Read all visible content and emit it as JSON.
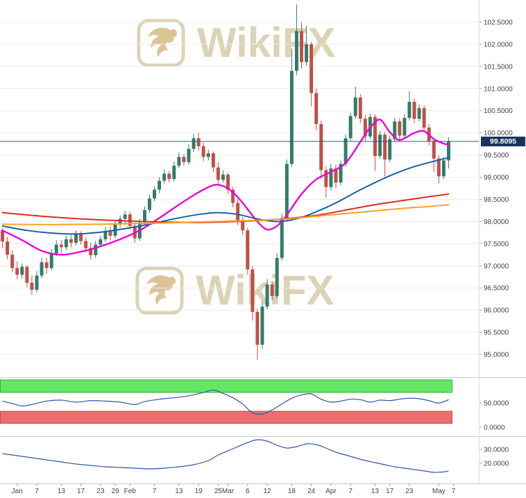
{
  "watermark": {
    "text": "WikiFX",
    "color": "#d8cfae",
    "logo_accent": "#d9be8c"
  },
  "colors": {
    "up": "#2f7d68",
    "down": "#c14e48",
    "grid": "#ececec",
    "axis_text": "#444444",
    "tick": "#999999",
    "separator": "#c9c9c9",
    "axis_line": "#dddddd",
    "price_line": "#35536e",
    "badge_bg": "#16365c",
    "badge_text": "#ffffff"
  },
  "chart_data": {
    "type": "candlestick",
    "title": "",
    "last_price": 99.8095,
    "last_price_label": "99.8095",
    "y_axis": {
      "min": 94.5,
      "max": 103.0,
      "tick_start": 95.0,
      "tick_step": 0.5,
      "tick_end": 102.5,
      "decimals": 4,
      "grid": true
    },
    "x_ticks": [
      {
        "i": 3,
        "label": "Jan"
      },
      {
        "i": 7,
        "label": "7"
      },
      {
        "i": 12,
        "label": "13"
      },
      {
        "i": 16,
        "label": "17"
      },
      {
        "i": 20,
        "label": "23"
      },
      {
        "i": 23,
        "label": "29"
      },
      {
        "i": 26,
        "label": "Feb"
      },
      {
        "i": 31,
        "label": "7"
      },
      {
        "i": 36,
        "label": "13"
      },
      {
        "i": 40,
        "label": "19"
      },
      {
        "i": 44,
        "label": "25"
      },
      {
        "i": 46,
        "label": "Mar"
      },
      {
        "i": 50,
        "label": "6"
      },
      {
        "i": 54,
        "label": "12"
      },
      {
        "i": 59,
        "label": "18"
      },
      {
        "i": 63,
        "label": "24"
      },
      {
        "i": 67,
        "label": "Apr"
      },
      {
        "i": 71,
        "label": "7"
      },
      {
        "i": 76,
        "label": "13"
      },
      {
        "i": 79,
        "label": "17"
      },
      {
        "i": 83,
        "label": "23"
      },
      {
        "i": 89,
        "label": "May"
      },
      {
        "i": 92,
        "label": "7"
      }
    ],
    "candles": [
      [
        97.8,
        97.85,
        97.4,
        97.55
      ],
      [
        97.55,
        97.65,
        97.15,
        97.25
      ],
      [
        97.25,
        97.35,
        96.85,
        96.95
      ],
      [
        96.95,
        97.1,
        96.7,
        96.8
      ],
      [
        96.8,
        97.05,
        96.72,
        96.98
      ],
      [
        96.98,
        97.02,
        96.52,
        96.62
      ],
      [
        96.62,
        96.78,
        96.34,
        96.46
      ],
      [
        96.46,
        96.88,
        96.4,
        96.78
      ],
      [
        96.78,
        97.18,
        96.72,
        97.08
      ],
      [
        97.08,
        97.18,
        96.82,
        96.95
      ],
      [
        96.95,
        97.38,
        96.9,
        97.28
      ],
      [
        97.28,
        97.58,
        97.22,
        97.48
      ],
      [
        97.48,
        97.58,
        97.28,
        97.42
      ],
      [
        97.42,
        97.68,
        97.36,
        97.6
      ],
      [
        97.6,
        97.7,
        97.42,
        97.52
      ],
      [
        97.52,
        97.8,
        97.46,
        97.72
      ],
      [
        97.72,
        97.78,
        97.48,
        97.56
      ],
      [
        97.56,
        97.64,
        97.3,
        97.4
      ],
      [
        97.4,
        97.52,
        97.14,
        97.24
      ],
      [
        97.24,
        97.56,
        97.18,
        97.48
      ],
      [
        97.48,
        97.68,
        97.42,
        97.6
      ],
      [
        97.6,
        97.88,
        97.54,
        97.78
      ],
      [
        97.78,
        97.88,
        97.58,
        97.68
      ],
      [
        97.68,
        98.02,
        97.62,
        97.94
      ],
      [
        97.94,
        98.14,
        97.86,
        98.06
      ],
      [
        98.06,
        98.24,
        97.92,
        98.16
      ],
      [
        98.16,
        98.22,
        97.82,
        97.9
      ],
      [
        97.9,
        97.98,
        97.52,
        97.62
      ],
      [
        97.62,
        98.06,
        97.56,
        97.98
      ],
      [
        97.98,
        98.34,
        97.92,
        98.26
      ],
      [
        98.26,
        98.6,
        98.2,
        98.52
      ],
      [
        98.52,
        98.8,
        98.46,
        98.72
      ],
      [
        98.72,
        99.0,
        98.64,
        98.92
      ],
      [
        98.92,
        99.18,
        98.86,
        99.08
      ],
      [
        99.08,
        99.14,
        98.88,
        98.96
      ],
      [
        98.96,
        99.36,
        98.9,
        99.26
      ],
      [
        99.26,
        99.56,
        99.2,
        99.46
      ],
      [
        99.46,
        99.52,
        99.26,
        99.34
      ],
      [
        99.34,
        99.74,
        99.28,
        99.64
      ],
      [
        99.64,
        99.98,
        99.58,
        99.88
      ],
      [
        99.88,
        100.0,
        99.6,
        99.7
      ],
      [
        99.7,
        99.78,
        99.36,
        99.46
      ],
      [
        99.46,
        99.62,
        99.38,
        99.54
      ],
      [
        99.54,
        99.58,
        99.12,
        99.22
      ],
      [
        99.22,
        99.34,
        98.84,
        98.94
      ],
      [
        98.94,
        99.16,
        98.88,
        99.06
      ],
      [
        99.06,
        99.1,
        98.62,
        98.72
      ],
      [
        98.72,
        98.78,
        98.32,
        98.42
      ],
      [
        98.42,
        98.5,
        97.92,
        98.02
      ],
      [
        98.02,
        98.1,
        97.7,
        97.8
      ],
      [
        97.8,
        97.86,
        96.8,
        96.92
      ],
      [
        96.92,
        97.0,
        95.76,
        95.96
      ],
      [
        95.96,
        96.04,
        94.88,
        95.22
      ],
      [
        95.22,
        96.18,
        95.12,
        96.08
      ],
      [
        96.08,
        96.7,
        96.02,
        96.58
      ],
      [
        96.58,
        96.66,
        96.22,
        96.32
      ],
      [
        96.32,
        97.28,
        96.26,
        97.18
      ],
      [
        97.18,
        98.18,
        97.12,
        98.08
      ],
      [
        98.08,
        99.4,
        98.02,
        99.3
      ],
      [
        99.3,
        101.9,
        99.24,
        101.4
      ],
      [
        101.4,
        102.9,
        101.3,
        102.3
      ],
      [
        102.3,
        102.5,
        101.46,
        101.6
      ],
      [
        101.6,
        102.42,
        101.52,
        102.0
      ],
      [
        102.0,
        102.06,
        100.6,
        100.9
      ],
      [
        100.9,
        101.0,
        100.06,
        100.2
      ],
      [
        100.2,
        100.28,
        98.96,
        99.16
      ],
      [
        99.16,
        99.24,
        98.54,
        98.78
      ],
      [
        98.78,
        99.3,
        98.7,
        99.2
      ],
      [
        99.2,
        99.28,
        98.76,
        98.88
      ],
      [
        98.88,
        99.38,
        98.82,
        99.3
      ],
      [
        99.3,
        99.96,
        99.24,
        99.88
      ],
      [
        99.88,
        100.46,
        99.82,
        100.38
      ],
      [
        100.38,
        101.04,
        100.32,
        100.8
      ],
      [
        100.8,
        100.88,
        100.22,
        100.32
      ],
      [
        100.32,
        100.4,
        99.82,
        99.92
      ],
      [
        99.92,
        100.44,
        99.86,
        100.36
      ],
      [
        100.36,
        100.42,
        99.14,
        99.48
      ],
      [
        99.48,
        100.04,
        99.42,
        99.96
      ],
      [
        99.96,
        100.02,
        99.02,
        99.4
      ],
      [
        99.4,
        99.94,
        99.34,
        99.86
      ],
      [
        99.86,
        100.34,
        99.8,
        100.26
      ],
      [
        100.26,
        100.32,
        99.84,
        99.94
      ],
      [
        99.94,
        100.42,
        99.88,
        100.34
      ],
      [
        100.34,
        100.94,
        100.28,
        100.7
      ],
      [
        100.7,
        100.78,
        100.22,
        100.32
      ],
      [
        100.32,
        100.64,
        100.26,
        100.56
      ],
      [
        100.56,
        100.62,
        100.02,
        100.12
      ],
      [
        100.12,
        100.2,
        99.72,
        99.82
      ],
      [
        99.82,
        99.88,
        99.12,
        99.42
      ],
      [
        99.42,
        99.5,
        98.86,
        99.02
      ],
      [
        99.02,
        99.46,
        98.96,
        99.38
      ],
      [
        99.38,
        99.9,
        99.2,
        99.81
      ]
    ],
    "overlays": [
      {
        "name": "ma-fast-magenta",
        "color": "#f000d8",
        "width": 2.4,
        "points": [
          [
            0,
            97.8
          ],
          [
            4,
            97.58
          ],
          [
            8,
            97.34
          ],
          [
            12,
            97.25
          ],
          [
            16,
            97.32
          ],
          [
            20,
            97.44
          ],
          [
            24,
            97.6
          ],
          [
            28,
            97.8
          ],
          [
            32,
            98.08
          ],
          [
            36,
            98.38
          ],
          [
            40,
            98.66
          ],
          [
            43,
            98.82
          ],
          [
            45,
            98.8
          ],
          [
            47,
            98.66
          ],
          [
            49,
            98.42
          ],
          [
            52,
            98.0
          ],
          [
            54,
            97.82
          ],
          [
            56,
            97.9
          ],
          [
            58,
            98.15
          ],
          [
            61,
            98.62
          ],
          [
            64,
            98.95
          ],
          [
            67,
            99.12
          ],
          [
            70,
            99.32
          ],
          [
            73,
            99.8
          ],
          [
            75,
            100.12
          ],
          [
            77,
            100.3
          ],
          [
            79,
            100.02
          ],
          [
            81,
            99.84
          ],
          [
            84,
            100.0
          ],
          [
            86,
            100.04
          ],
          [
            88,
            99.86
          ],
          [
            90,
            99.76
          ],
          [
            91,
            99.74
          ]
        ]
      },
      {
        "name": "ma-mid-blue",
        "color": "#1b5fa6",
        "width": 2,
        "points": [
          [
            0,
            97.9
          ],
          [
            5,
            97.8
          ],
          [
            10,
            97.74
          ],
          [
            15,
            97.72
          ],
          [
            20,
            97.76
          ],
          [
            25,
            97.84
          ],
          [
            30,
            97.94
          ],
          [
            35,
            98.06
          ],
          [
            40,
            98.16
          ],
          [
            44,
            98.2
          ],
          [
            48,
            98.16
          ],
          [
            52,
            98.06
          ],
          [
            56,
            98.0
          ],
          [
            60,
            98.06
          ],
          [
            64,
            98.22
          ],
          [
            68,
            98.42
          ],
          [
            72,
            98.66
          ],
          [
            76,
            98.88
          ],
          [
            80,
            99.08
          ],
          [
            84,
            99.24
          ],
          [
            88,
            99.36
          ],
          [
            91,
            99.44
          ]
        ]
      },
      {
        "name": "ma-slow-red",
        "color": "#e02b20",
        "width": 2,
        "points": [
          [
            0,
            98.2
          ],
          [
            8,
            98.12
          ],
          [
            16,
            98.06
          ],
          [
            24,
            98.02
          ],
          [
            32,
            97.99
          ],
          [
            40,
            97.98
          ],
          [
            48,
            98.0
          ],
          [
            56,
            98.05
          ],
          [
            64,
            98.14
          ],
          [
            70,
            98.26
          ],
          [
            76,
            98.38
          ],
          [
            82,
            98.48
          ],
          [
            87,
            98.56
          ],
          [
            91,
            98.62
          ]
        ]
      },
      {
        "name": "ma-slower-orange",
        "color": "#ffa021",
        "width": 2,
        "points": [
          [
            0,
            97.94
          ],
          [
            10,
            97.93
          ],
          [
            20,
            97.94
          ],
          [
            30,
            97.96
          ],
          [
            40,
            97.99
          ],
          [
            50,
            98.02
          ],
          [
            58,
            98.06
          ],
          [
            64,
            98.12
          ],
          [
            70,
            98.18
          ],
          [
            76,
            98.24
          ],
          [
            82,
            98.3
          ],
          [
            87,
            98.34
          ],
          [
            91,
            98.38
          ]
        ]
      }
    ],
    "panels": [
      {
        "name": "oscillator",
        "v_min": -13,
        "v_max": 99,
        "ticks": [
          50,
          0
        ],
        "tick_decimals": 4,
        "line_color": "#2d55a5",
        "zones": [
          {
            "name": "overbought",
            "from": 72,
            "to": 98,
            "fill": "#67e567",
            "stroke": "#2fb32f"
          },
          {
            "name": "oversold",
            "from": 8,
            "to": 33,
            "fill": "#ef6c6c",
            "stroke": "#cc4646"
          }
        ],
        "points": [
          [
            0,
            54
          ],
          [
            2,
            49
          ],
          [
            4,
            44
          ],
          [
            6,
            47
          ],
          [
            9,
            54
          ],
          [
            12,
            56
          ],
          [
            15,
            52
          ],
          [
            18,
            55
          ],
          [
            21,
            54
          ],
          [
            24,
            52
          ],
          [
            27,
            47
          ],
          [
            29,
            53
          ],
          [
            32,
            58
          ],
          [
            35,
            61
          ],
          [
            38,
            65
          ],
          [
            41,
            72
          ],
          [
            43,
            77
          ],
          [
            45,
            70
          ],
          [
            47,
            61
          ],
          [
            49,
            48
          ],
          [
            51,
            30
          ],
          [
            53,
            27
          ],
          [
            55,
            36
          ],
          [
            57,
            48
          ],
          [
            59,
            60
          ],
          [
            61,
            67
          ],
          [
            63,
            69
          ],
          [
            65,
            58
          ],
          [
            67,
            52
          ],
          [
            69,
            54
          ],
          [
            71,
            58
          ],
          [
            73,
            57
          ],
          [
            75,
            52
          ],
          [
            77,
            56
          ],
          [
            79,
            55
          ],
          [
            81,
            58
          ],
          [
            83,
            60
          ],
          [
            85,
            59
          ],
          [
            87,
            55
          ],
          [
            89,
            50
          ],
          [
            91,
            57
          ]
        ]
      },
      {
        "name": "trend-strength",
        "v_min": 6,
        "v_max": 38,
        "ticks": [
          30,
          20
        ],
        "tick_decimals": 4,
        "line_color": "#2d55a5",
        "zones": [],
        "points": [
          [
            0,
            27
          ],
          [
            3,
            25.5
          ],
          [
            6,
            24
          ],
          [
            9,
            22.5
          ],
          [
            12,
            21
          ],
          [
            15,
            19.5
          ],
          [
            18,
            18.5
          ],
          [
            21,
            17.5
          ],
          [
            24,
            17
          ],
          [
            27,
            16.5
          ],
          [
            30,
            16
          ],
          [
            33,
            16.5
          ],
          [
            36,
            17.5
          ],
          [
            39,
            19
          ],
          [
            42,
            22
          ],
          [
            44,
            26
          ],
          [
            46,
            29
          ],
          [
            48,
            32
          ],
          [
            50,
            35
          ],
          [
            52,
            37
          ],
          [
            54,
            36
          ],
          [
            56,
            33
          ],
          [
            58,
            31
          ],
          [
            60,
            32
          ],
          [
            62,
            34
          ],
          [
            64,
            33.5
          ],
          [
            66,
            31
          ],
          [
            68,
            28
          ],
          [
            70,
            26
          ],
          [
            72,
            24
          ],
          [
            74,
            22
          ],
          [
            76,
            20.5
          ],
          [
            78,
            19
          ],
          [
            80,
            17.5
          ],
          [
            82,
            16.5
          ],
          [
            84,
            15.5
          ],
          [
            86,
            14.5
          ],
          [
            88,
            13.5
          ],
          [
            90,
            13.8
          ],
          [
            91,
            14.5
          ]
        ]
      }
    ]
  }
}
